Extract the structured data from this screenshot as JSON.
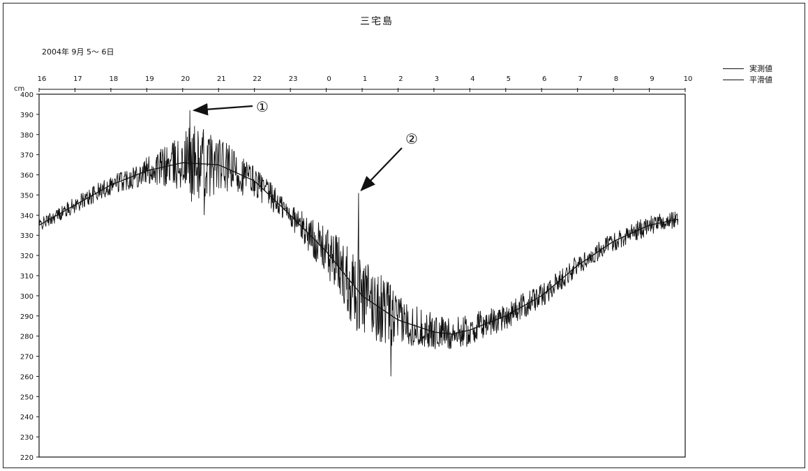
{
  "chart_data": {
    "type": "line",
    "title": "三宅島",
    "subtitle": "2004年 9月 5～ 6日",
    "ylabel": "cm",
    "ylim": [
      220,
      400
    ],
    "y_ticks": [
      "400",
      "390",
      "380",
      "370",
      "360",
      "350",
      "340",
      "330",
      "320",
      "310",
      "300",
      "290",
      "280",
      "270",
      "260",
      "250",
      "240",
      "230",
      "220"
    ],
    "x_ticks": [
      "16",
      "17",
      "18",
      "19",
      "20",
      "21",
      "22",
      "23",
      "0",
      "1",
      "2",
      "3",
      "4",
      "5",
      "6",
      "7",
      "8",
      "9",
      "10"
    ],
    "x_start_hour": 16,
    "x_end_hour": 34,
    "legend": [
      "実測値",
      "平滑値"
    ],
    "annotations": [
      {
        "label": "①",
        "x_hour": 20.2,
        "y": 392
      },
      {
        "label": "②",
        "x_hour": 24.9,
        "y": 351
      }
    ],
    "series": [
      {
        "name": "平滑値",
        "x_hours": [
          16,
          17,
          18,
          19,
          20,
          21,
          22,
          23,
          24,
          25,
          26,
          27,
          27.5,
          28,
          29,
          30,
          31,
          32,
          33,
          33.8
        ],
        "values": [
          335,
          345,
          355,
          362,
          366,
          365,
          357,
          340,
          322,
          300,
          288,
          282,
          281,
          283,
          290,
          300,
          315,
          327,
          335,
          338
        ]
      },
      {
        "name": "実測値",
        "x_hours": [
          16,
          17,
          18,
          19,
          20,
          20.2,
          20.6,
          21,
          22,
          23,
          24,
          24.9,
          25,
          25.8,
          26,
          27,
          27.5,
          28,
          29,
          30,
          31,
          32,
          33,
          33.8
        ],
        "values": [
          335,
          345,
          355,
          362,
          366,
          392,
          340,
          365,
          357,
          340,
          322,
          351,
          300,
          260,
          288,
          282,
          281,
          283,
          290,
          300,
          315,
          327,
          335,
          338
        ],
        "noise_amplitude_cm": [
          3,
          4,
          5,
          7,
          14,
          20,
          18,
          14,
          8,
          6,
          12,
          22,
          20,
          16,
          12,
          9,
          8,
          8,
          7,
          6,
          5,
          5,
          5,
          4
        ]
      }
    ]
  }
}
